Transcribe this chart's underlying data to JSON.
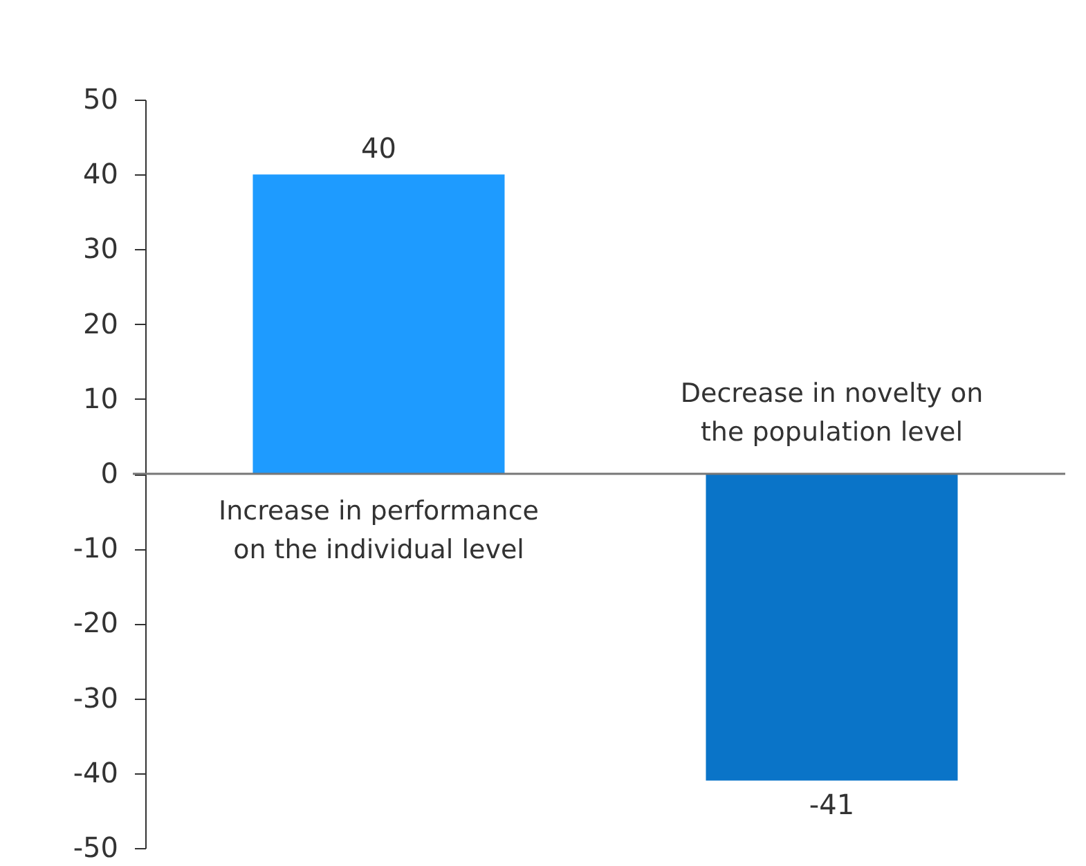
{
  "chart_data": {
    "type": "bar",
    "categories": [
      "Increase in performance\non the individual level",
      "Decrease in novelty on\nthe population level"
    ],
    "values": [
      40,
      -41
    ],
    "colors": [
      "#1e9bff",
      "#0a74c8"
    ],
    "ylim": [
      -50,
      50
    ],
    "yticks": [
      -50,
      -40,
      -30,
      -20,
      -10,
      0,
      10,
      20,
      30,
      40,
      50
    ],
    "data_labels": true
  }
}
